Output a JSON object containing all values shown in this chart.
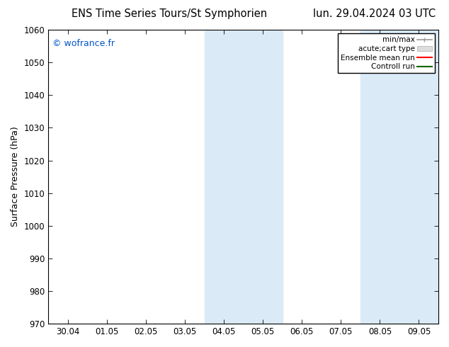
{
  "title_left": "ENS Time Series Tours/St Symphorien",
  "title_right": "lun. 29.04.2024 03 UTC",
  "ylabel": "Surface Pressure (hPa)",
  "ylim": [
    970,
    1060
  ],
  "yticks": [
    970,
    980,
    990,
    1000,
    1010,
    1020,
    1030,
    1040,
    1050,
    1060
  ],
  "xtick_labels": [
    "30.04",
    "01.05",
    "02.05",
    "03.05",
    "04.05",
    "05.05",
    "06.05",
    "07.05",
    "08.05",
    "09.05"
  ],
  "shaded_regions": [
    {
      "xstart": 4,
      "xend": 5,
      "color": "#daeaf7"
    },
    {
      "xstart": 5,
      "xend": 6,
      "color": "#daeaf7"
    },
    {
      "xstart": 8,
      "xend": 9,
      "color": "#daeaf7"
    },
    {
      "xstart": 9,
      "xend": 10,
      "color": "#daeaf7"
    }
  ],
  "watermark_text": "© wofrance.fr",
  "watermark_color": "#0055cc",
  "background_color": "#ffffff",
  "spine_color": "#000000",
  "title_fontsize": 10.5,
  "tick_fontsize": 8.5,
  "ylabel_fontsize": 9
}
